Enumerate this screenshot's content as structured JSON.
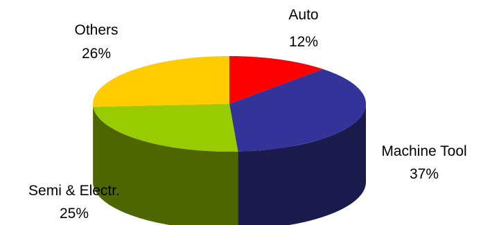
{
  "chart_data": {
    "type": "pie",
    "title": "",
    "three_d": true,
    "slices": [
      {
        "label": "Auto",
        "value": 12,
        "percent_label": "12%",
        "color": "#ff0000",
        "side_color": "#7f0000"
      },
      {
        "label": "Machine Tool",
        "value": 37,
        "percent_label": "37%",
        "color": "#333399",
        "side_color": "#1a1a4d"
      },
      {
        "label": "Semi & Electr.",
        "value": 25,
        "percent_label": "25%",
        "color": "#99cc00",
        "side_color": "#4d6600"
      },
      {
        "label": "Others",
        "value": 26,
        "percent_label": "26%",
        "color": "#ffcc00",
        "side_color": "#806600"
      }
    ]
  }
}
